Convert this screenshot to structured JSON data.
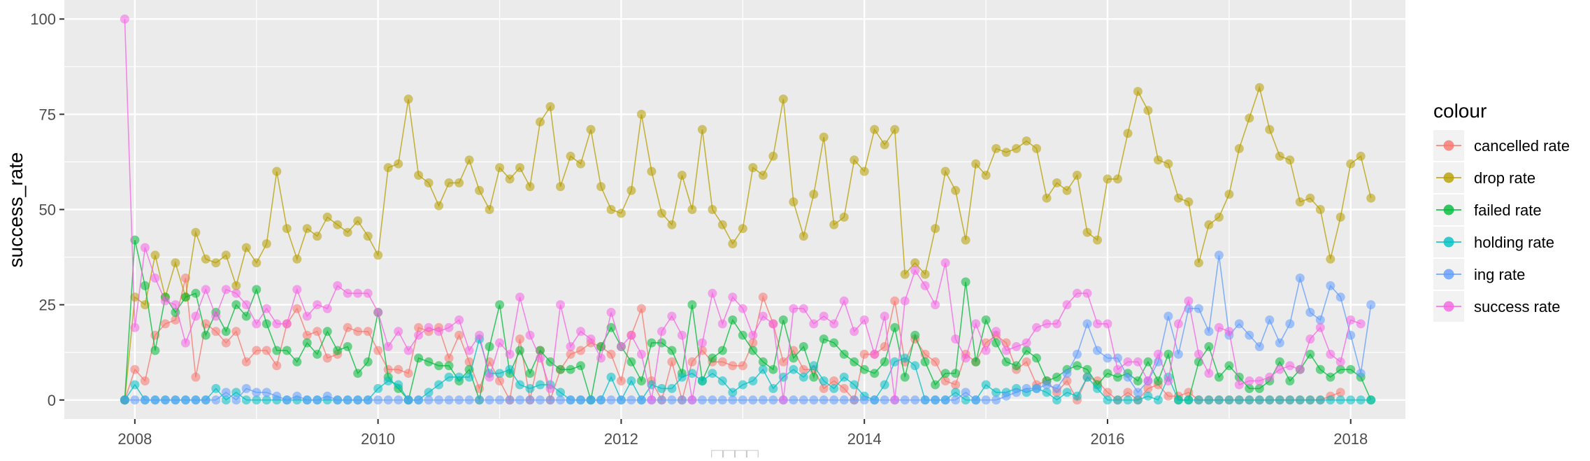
{
  "chart_data": {
    "type": "line",
    "title": "",
    "xlabel": "□□□□",
    "ylabel": "success_rate",
    "xlim": [
      2007.42,
      2018.45
    ],
    "ylim": [
      -5,
      105
    ],
    "x_ticks": [
      2008,
      2010,
      2012,
      2014,
      2016,
      2018
    ],
    "x_tick_labels": [
      "2008",
      "2010",
      "2012",
      "2014",
      "2016",
      "2018"
    ],
    "y_ticks": [
      0,
      25,
      50,
      75,
      100
    ],
    "y_tick_labels": [
      "0",
      "25",
      "50",
      "75",
      "100"
    ],
    "grid": true,
    "legend": {
      "title": "colour",
      "position": "right"
    },
    "x_start": 2007.917,
    "x_step": 0.08333,
    "series": [
      {
        "name": "cancelled rate",
        "color": "#F8766D",
        "values": [
          0,
          8,
          5,
          17,
          20,
          21,
          32,
          6,
          20,
          18,
          15,
          18,
          10,
          13,
          13,
          9,
          20,
          24,
          17,
          18,
          11,
          12,
          19,
          18,
          18,
          13,
          8,
          8,
          7,
          19,
          18,
          19,
          11,
          17,
          10,
          3,
          10,
          5,
          0,
          16,
          0,
          13,
          0,
          8,
          12,
          13,
          15,
          14,
          12,
          5,
          17,
          24,
          5,
          0,
          10,
          0,
          10,
          13,
          10,
          10,
          9,
          9,
          15,
          27,
          20,
          10,
          13,
          8,
          8,
          3,
          5,
          3,
          0,
          12,
          12,
          14,
          26,
          10,
          16,
          12,
          10,
          5,
          4,
          12,
          10,
          15,
          17,
          15,
          8,
          10,
          4,
          5,
          2,
          5,
          0,
          6,
          5,
          2,
          0,
          2,
          0,
          3,
          4,
          1,
          1,
          2,
          0,
          0,
          0,
          0,
          0,
          0,
          0,
          0,
          0,
          0,
          0,
          0,
          0,
          1,
          2
        ]
      },
      {
        "name": "drop rate",
        "color": "#B79F00",
        "values": [
          0,
          27,
          25,
          38,
          27,
          36,
          27,
          44,
          37,
          36,
          38,
          30,
          40,
          36,
          41,
          60,
          45,
          37,
          45,
          43,
          48,
          46,
          44,
          47,
          43,
          38,
          61,
          62,
          79,
          59,
          57,
          51,
          57,
          57,
          63,
          55,
          50,
          61,
          58,
          61,
          56,
          73,
          77,
          56,
          64,
          62,
          71,
          56,
          50,
          49,
          55,
          75,
          60,
          49,
          46,
          59,
          50,
          71,
          50,
          46,
          41,
          45,
          61,
          59,
          64,
          79,
          52,
          43,
          54,
          69,
          46,
          48,
          63,
          60,
          71,
          67,
          71,
          33,
          36,
          33,
          45,
          60,
          55,
          42,
          62,
          59,
          66,
          65,
          66,
          68,
          66,
          53,
          57,
          55,
          59,
          44,
          42,
          58,
          58,
          70,
          81,
          76,
          63,
          62,
          53,
          52,
          36,
          46,
          48,
          54,
          66,
          74,
          82,
          71,
          64,
          63,
          52,
          53,
          50,
          37,
          48,
          62,
          64,
          53
        ]
      },
      {
        "name": "failed rate",
        "color": "#00BA38",
        "values": [
          0,
          42,
          30,
          13,
          27,
          23,
          27,
          28,
          17,
          23,
          18,
          25,
          22,
          29,
          20,
          13,
          13,
          10,
          15,
          12,
          18,
          13,
          14,
          7,
          10,
          23,
          6,
          3,
          0,
          11,
          10,
          9,
          9,
          5,
          8,
          0,
          14,
          25,
          7,
          13,
          7,
          13,
          10,
          8,
          8,
          9,
          0,
          14,
          19,
          14,
          10,
          5,
          15,
          15,
          13,
          7,
          25,
          5,
          11,
          13,
          21,
          17,
          13,
          10,
          8,
          21,
          11,
          14,
          6,
          16,
          15,
          12,
          10,
          8,
          7,
          10,
          19,
          6,
          17,
          10,
          4,
          7,
          7,
          31,
          10,
          21,
          15,
          10,
          9,
          13,
          11,
          5,
          6,
          8,
          9,
          8,
          4,
          7,
          6,
          7,
          5,
          10,
          5,
          12,
          0,
          0,
          10,
          14,
          6,
          9,
          6,
          3,
          3,
          5,
          10,
          5,
          8,
          12,
          8,
          6,
          8,
          8,
          6,
          0
        ]
      },
      {
        "name": "holding rate",
        "color": "#00BFC4",
        "values": [
          0,
          4,
          0,
          0,
          0,
          0,
          0,
          0,
          0,
          3,
          0,
          2,
          0,
          0,
          0,
          0,
          0,
          0,
          0,
          0,
          0,
          0,
          0,
          0,
          0,
          3,
          5,
          4,
          0,
          0,
          2,
          4,
          6,
          6,
          6,
          16,
          7,
          7,
          8,
          4,
          3,
          4,
          4,
          2,
          0,
          0,
          0,
          0,
          6,
          0,
          5,
          0,
          4,
          3,
          3,
          6,
          7,
          5,
          7,
          5,
          2,
          4,
          5,
          8,
          3,
          6,
          8,
          6,
          9,
          5,
          3,
          6,
          4,
          1,
          0,
          4,
          10,
          11,
          9,
          0,
          0,
          0,
          2,
          0,
          0,
          4,
          2,
          2,
          3,
          2,
          3,
          2,
          0,
          2,
          1,
          6,
          3,
          0,
          0,
          0,
          0,
          1,
          0,
          6,
          0,
          0,
          0,
          0,
          0,
          0,
          0,
          0,
          0,
          0,
          0,
          0,
          0,
          0,
          0,
          0,
          0,
          0,
          0,
          0
        ]
      },
      {
        "name": "ing rate",
        "color": "#619CFF",
        "values": [
          0,
          0,
          0,
          0,
          0,
          0,
          0,
          0,
          0,
          0,
          2,
          0,
          3,
          2,
          2,
          1,
          0,
          1,
          0,
          0,
          1,
          0,
          0,
          0,
          0,
          0,
          0,
          0,
          0,
          0,
          0,
          0,
          0,
          0,
          0,
          0,
          0,
          0,
          0,
          0,
          0,
          0,
          0,
          0,
          0,
          0,
          0,
          0,
          0,
          0,
          0,
          0,
          0,
          0,
          0,
          0,
          0,
          0,
          0,
          0,
          0,
          0,
          0,
          0,
          0,
          0,
          0,
          0,
          0,
          0,
          0,
          0,
          0,
          0,
          0,
          0,
          0,
          0,
          0,
          0,
          0,
          0,
          0,
          2,
          0,
          0,
          0,
          1,
          2,
          3,
          3,
          4,
          3,
          7,
          12,
          20,
          13,
          11,
          11,
          6,
          2,
          5,
          10,
          22,
          12,
          24,
          24,
          18,
          38,
          17,
          20,
          17,
          14,
          21,
          15,
          20,
          32,
          23,
          21,
          30,
          27,
          17,
          7,
          25
        ]
      },
      {
        "name": "success rate",
        "color": "#F564E3",
        "values": [
          100,
          19,
          40,
          32,
          26,
          25,
          15,
          22,
          29,
          22,
          29,
          28,
          25,
          20,
          24,
          20,
          20,
          29,
          22,
          25,
          24,
          30,
          28,
          28,
          28,
          23,
          14,
          18,
          13,
          17,
          19,
          18,
          19,
          21,
          13,
          17,
          6,
          15,
          12,
          27,
          17,
          11,
          3,
          25,
          14,
          18,
          16,
          11,
          23,
          14,
          17,
          12,
          0,
          18,
          22,
          17,
          0,
          15,
          28,
          20,
          27,
          24,
          17,
          22,
          20,
          0,
          24,
          24,
          20,
          22,
          20,
          26,
          18,
          21,
          12,
          22,
          0,
          26,
          34,
          30,
          25,
          36,
          16,
          11,
          20,
          13,
          18,
          13,
          14,
          15,
          19,
          20,
          20,
          25,
          28,
          28,
          20,
          20,
          8,
          10,
          10,
          5,
          12,
          5,
          20,
          26,
          12,
          7,
          19,
          18,
          4,
          5,
          5,
          6,
          8,
          9,
          8,
          16,
          19,
          12,
          10,
          21,
          20
        ]
      }
    ]
  }
}
